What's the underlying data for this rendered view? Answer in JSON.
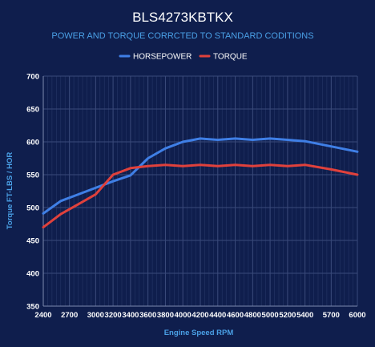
{
  "chart_data": {
    "type": "line",
    "title": "BLS4273KBTKX",
    "subtitle": "POWER AND TORQUE CORRCTED TO STANDARD CODITIONS",
    "xlabel": "Engine Speed RPM",
    "ylabel": "Torque FT-LBS / HOR",
    "xlim": [
      2400,
      6000
    ],
    "ylim": [
      350,
      700
    ],
    "x_ticks": [
      2400,
      2700,
      3000,
      3200,
      3400,
      3600,
      3800,
      4000,
      4200,
      4400,
      4600,
      4800,
      5000,
      5200,
      5400,
      5700,
      6000
    ],
    "y_ticks": [
      350,
      400,
      450,
      500,
      550,
      600,
      650,
      700
    ],
    "grid": true,
    "legend_position": "top",
    "series": [
      {
        "name": "HORSEPOWER",
        "color": "#3f7fe6",
        "points": [
          [
            2400,
            491
          ],
          [
            2600,
            510
          ],
          [
            2800,
            520
          ],
          [
            3000,
            530
          ],
          [
            3200,
            540
          ],
          [
            3400,
            549
          ],
          [
            3600,
            575
          ],
          [
            3800,
            590
          ],
          [
            4000,
            600
          ],
          [
            4200,
            605
          ],
          [
            4400,
            603
          ],
          [
            4600,
            605
          ],
          [
            4800,
            603
          ],
          [
            5000,
            605
          ],
          [
            5200,
            603
          ],
          [
            5400,
            601
          ],
          [
            5700,
            593
          ],
          [
            6000,
            585
          ]
        ]
      },
      {
        "name": "TORQUE",
        "color": "#e0413c",
        "points": [
          [
            2400,
            470
          ],
          [
            2600,
            490
          ],
          [
            2800,
            505
          ],
          [
            3000,
            520
          ],
          [
            3200,
            550
          ],
          [
            3400,
            560
          ],
          [
            3600,
            563
          ],
          [
            3800,
            565
          ],
          [
            4000,
            563
          ],
          [
            4200,
            565
          ],
          [
            4400,
            563
          ],
          [
            4600,
            565
          ],
          [
            4800,
            563
          ],
          [
            5000,
            565
          ],
          [
            5200,
            563
          ],
          [
            5400,
            565
          ],
          [
            5700,
            558
          ],
          [
            6000,
            550
          ]
        ]
      }
    ]
  }
}
